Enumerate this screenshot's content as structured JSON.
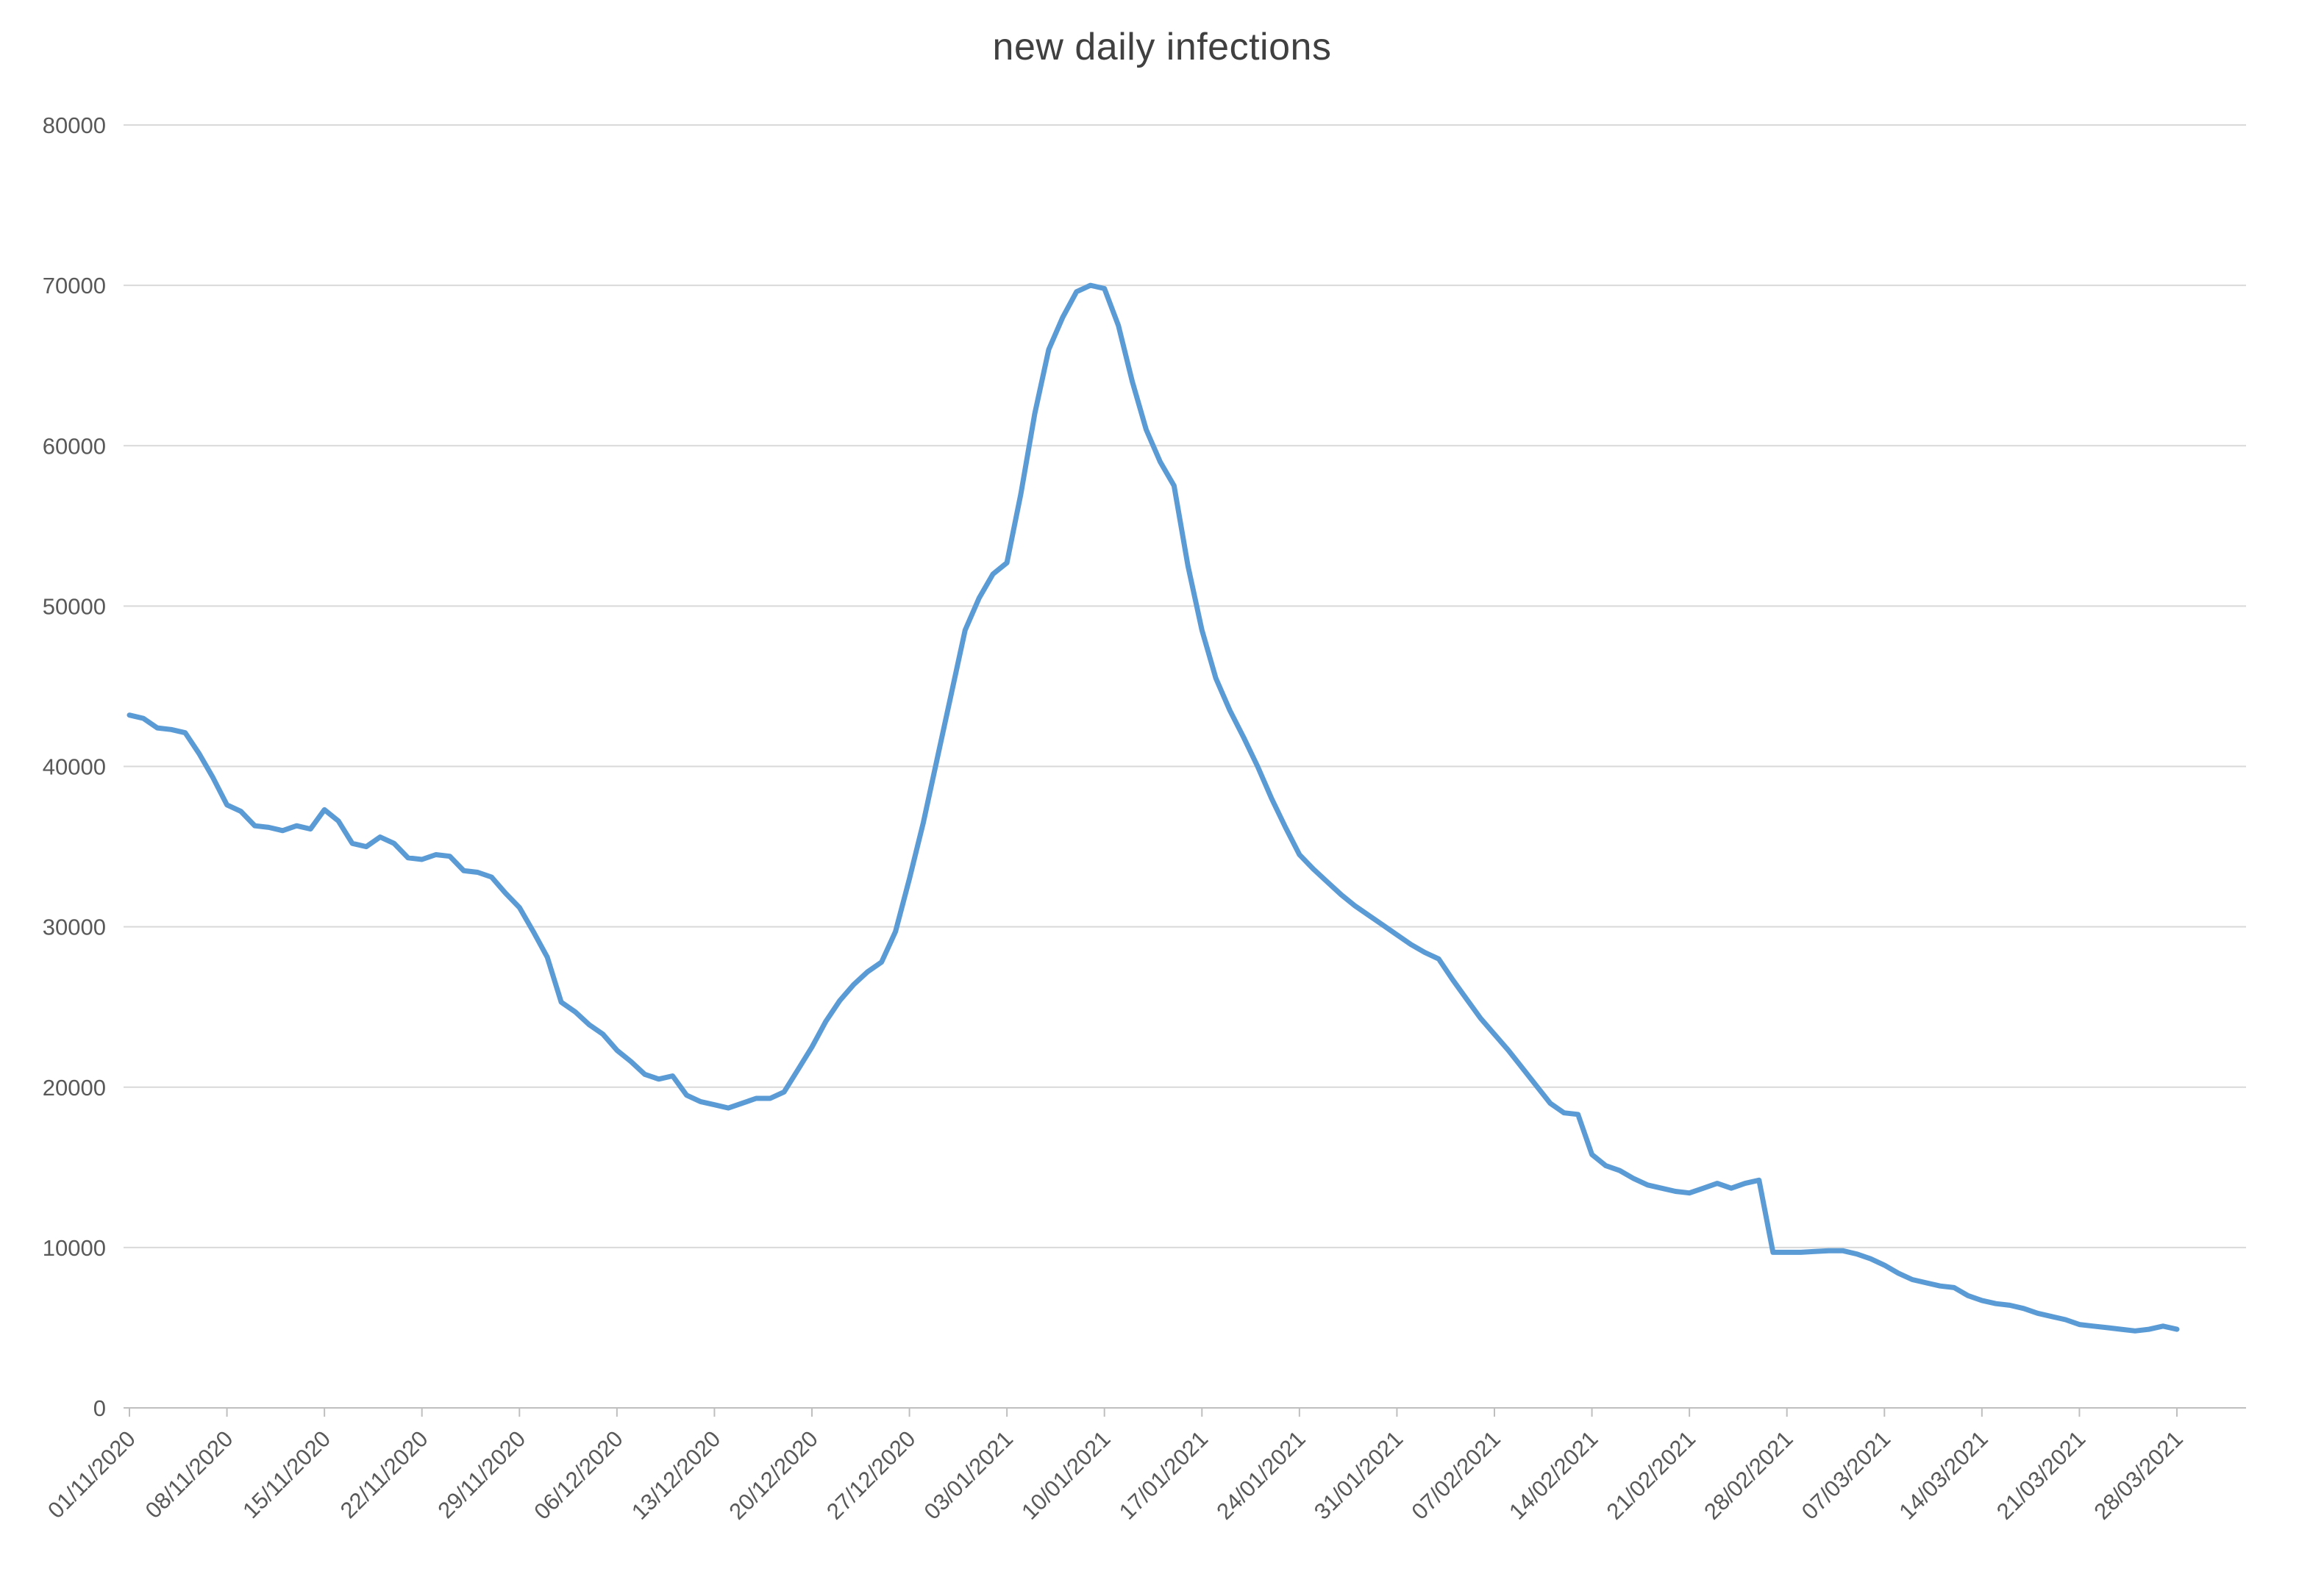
{
  "chart_data": {
    "type": "line",
    "title": "new daily infections",
    "xlabel": "",
    "ylabel": "",
    "x_frequency": "daily",
    "x_start": "01/11/2020",
    "x_end": "28/03/2021",
    "x_tick_labels": [
      "01/11/2020",
      "08/11/2020",
      "15/11/2020",
      "22/11/2020",
      "29/11/2020",
      "06/12/2020",
      "13/12/2020",
      "20/12/2020",
      "27/12/2020",
      "03/01/2021",
      "10/01/2021",
      "17/01/2021",
      "24/01/2021",
      "31/01/2021",
      "07/02/2021",
      "14/02/2021",
      "21/02/2021",
      "28/02/2021",
      "07/03/2021",
      "14/03/2021",
      "21/03/2021",
      "28/03/2021"
    ],
    "points_per_tick": 7,
    "y_tick_labels": [
      "0",
      "10000",
      "20000",
      "30000",
      "40000",
      "50000",
      "60000",
      "70000",
      "80000"
    ],
    "ylim": [
      0,
      80000
    ],
    "y_tick_step": 10000,
    "grid": "horizontal",
    "legend": "none",
    "values": [
      43200,
      43000,
      42400,
      42300,
      42100,
      40800,
      39300,
      37600,
      37200,
      36300,
      36200,
      36000,
      36300,
      36100,
      37300,
      36600,
      35200,
      35000,
      35600,
      35200,
      34300,
      34200,
      34500,
      34400,
      33500,
      33400,
      33100,
      32100,
      31200,
      29700,
      28100,
      25300,
      24700,
      23900,
      23300,
      22300,
      21600,
      20800,
      20500,
      20700,
      19500,
      19100,
      18900,
      18700,
      19000,
      19300,
      19300,
      19700,
      21100,
      22500,
      24100,
      25400,
      26400,
      27200,
      27800,
      29700,
      33000,
      36500,
      40500,
      44500,
      48500,
      50500,
      52000,
      52700,
      57000,
      62000,
      66000,
      68000,
      69600,
      70000,
      69800,
      67500,
      64000,
      61000,
      59000,
      57500,
      52500,
      48500,
      45500,
      43500,
      41800,
      40000,
      38000,
      36200,
      34500,
      33600,
      32800,
      32000,
      31300,
      30700,
      30100,
      29500,
      28900,
      28400,
      28000,
      26700,
      25500,
      24300,
      23300,
      22300,
      21200,
      20100,
      19000,
      18400,
      18300,
      15800,
      15100,
      14800,
      14300,
      13900,
      13700,
      13500,
      13400,
      13700,
      14000,
      13700,
      14000,
      14200,
      9700,
      9700,
      9700,
      9750,
      9800,
      9800,
      9600,
      9300,
      8900,
      8400,
      8000,
      7800,
      7600,
      7500,
      7000,
      6700,
      6500,
      6400,
      6200,
      5900,
      5700,
      5500,
      5200,
      5100,
      5000,
      4900,
      4800,
      4900,
      5100,
      4900
    ]
  },
  "colors": {
    "line": "#5B9BD5",
    "gridline": "#D9D9D9",
    "axis_line": "#BFBFBF",
    "tick_label": "#595959",
    "title": "#404040",
    "background": "#FFFFFF"
  }
}
